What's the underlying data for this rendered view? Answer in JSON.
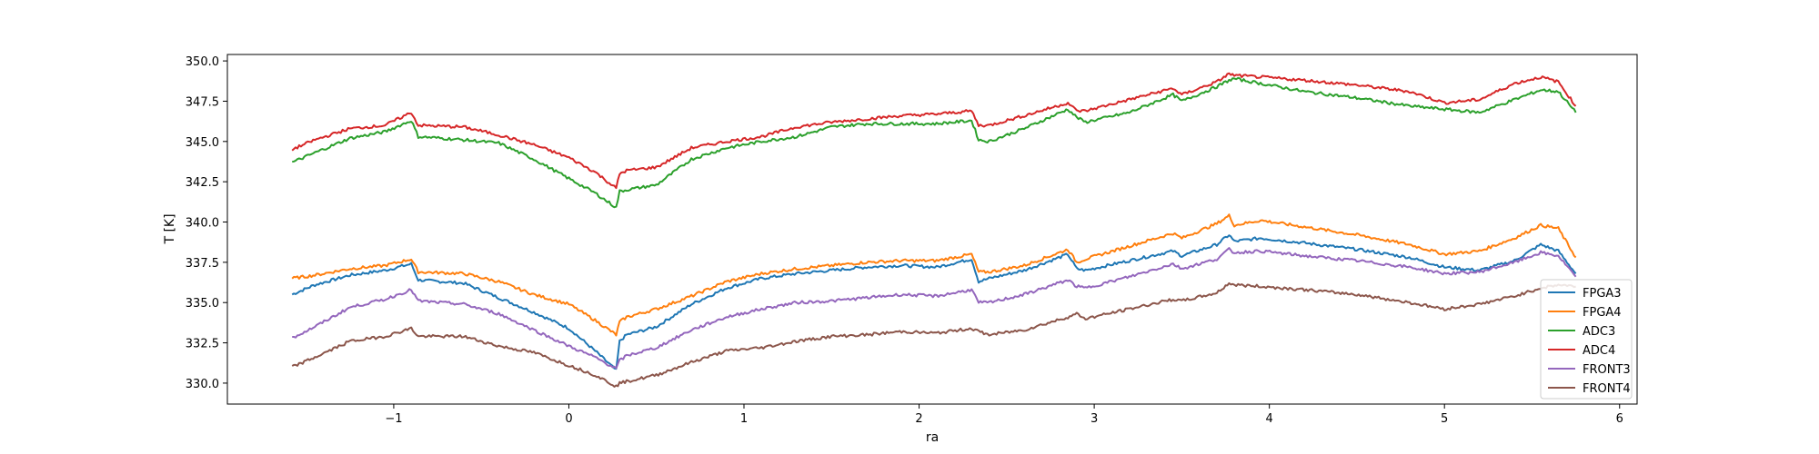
{
  "chart_data": {
    "type": "line",
    "title": "",
    "xlabel": "ra",
    "ylabel": "T [K]",
    "xlim": [
      -1.95,
      6.1
    ],
    "ylim": [
      328.7,
      350.4
    ],
    "xticks": [
      -1,
      0,
      1,
      2,
      3,
      4,
      5,
      6
    ],
    "yticks": [
      330.0,
      332.5,
      335.0,
      337.5,
      340.0,
      342.5,
      345.0,
      347.5,
      350.0
    ],
    "ytick_labels": [
      "330.0",
      "332.5",
      "335.0",
      "337.5",
      "340.0",
      "342.5",
      "345.0",
      "347.5",
      "350.0"
    ],
    "grid": false,
    "legend_position": "lower-right",
    "series": [
      {
        "name": "FPGA3",
        "color": "#1f77b4",
        "x": [
          -1.58,
          -1.45,
          -1.25,
          -1.05,
          -0.9,
          -0.86,
          -0.6,
          -0.4,
          -0.2,
          0.0,
          0.15,
          0.27,
          0.29,
          0.33,
          0.5,
          0.7,
          0.9,
          1.1,
          1.3,
          1.5,
          1.7,
          1.9,
          2.1,
          2.3,
          2.34,
          2.4,
          2.6,
          2.85,
          2.9,
          2.95,
          3.2,
          3.45,
          3.5,
          3.7,
          3.77,
          3.8,
          3.95,
          4.2,
          4.5,
          4.8,
          5.0,
          5.2,
          5.4,
          5.55,
          5.65,
          5.75
        ],
        "y": [
          335.5,
          336.1,
          336.7,
          337.0,
          337.4,
          336.4,
          336.2,
          335.3,
          334.4,
          333.4,
          332.0,
          330.8,
          332.6,
          333.0,
          333.5,
          334.9,
          335.9,
          336.5,
          336.8,
          337.0,
          337.2,
          337.3,
          337.2,
          337.7,
          336.3,
          336.5,
          337.0,
          338.0,
          337.1,
          337.0,
          337.6,
          338.2,
          337.9,
          338.6,
          339.2,
          338.8,
          339.0,
          338.7,
          338.3,
          337.8,
          337.2,
          337.0,
          337.6,
          338.6,
          338.2,
          336.8
        ]
      },
      {
        "name": "FPGA4",
        "color": "#ff7f0e",
        "x": [
          -1.58,
          -1.45,
          -1.25,
          -1.05,
          -0.9,
          -0.86,
          -0.6,
          -0.4,
          -0.2,
          0.0,
          0.15,
          0.27,
          0.29,
          0.33,
          0.5,
          0.7,
          0.9,
          1.1,
          1.3,
          1.5,
          1.7,
          1.9,
          2.1,
          2.3,
          2.34,
          2.4,
          2.6,
          2.85,
          2.9,
          2.95,
          3.2,
          3.45,
          3.5,
          3.7,
          3.77,
          3.8,
          3.95,
          4.2,
          4.5,
          4.8,
          5.0,
          5.2,
          5.4,
          5.55,
          5.65,
          5.75
        ],
        "y": [
          336.5,
          336.7,
          337.1,
          337.3,
          337.7,
          336.9,
          336.8,
          336.3,
          335.5,
          334.9,
          333.9,
          333.0,
          333.8,
          334.1,
          334.6,
          335.4,
          336.3,
          336.8,
          337.1,
          337.3,
          337.5,
          337.6,
          337.6,
          338.0,
          336.9,
          336.9,
          337.3,
          338.3,
          337.5,
          337.7,
          338.5,
          339.3,
          339.0,
          339.9,
          340.4,
          339.8,
          340.1,
          339.7,
          339.2,
          338.6,
          338.0,
          338.2,
          339.0,
          339.8,
          339.6,
          337.8
        ]
      },
      {
        "name": "ADC3",
        "color": "#2ca02c",
        "x": [
          -1.58,
          -1.45,
          -1.25,
          -1.05,
          -0.9,
          -0.86,
          -0.6,
          -0.4,
          -0.2,
          0.0,
          0.15,
          0.27,
          0.29,
          0.33,
          0.5,
          0.7,
          0.9,
          1.1,
          1.3,
          1.5,
          1.7,
          1.9,
          2.1,
          2.3,
          2.34,
          2.4,
          2.6,
          2.85,
          2.9,
          2.95,
          3.2,
          3.45,
          3.5,
          3.7,
          3.77,
          3.8,
          3.95,
          4.2,
          4.5,
          4.8,
          5.0,
          5.2,
          5.4,
          5.55,
          5.65,
          5.75
        ],
        "y": [
          343.7,
          344.3,
          345.2,
          345.6,
          346.3,
          345.3,
          345.1,
          344.9,
          343.9,
          342.7,
          341.8,
          340.9,
          341.9,
          342.0,
          342.3,
          343.9,
          344.6,
          345.0,
          345.3,
          345.9,
          346.1,
          346.1,
          346.1,
          346.3,
          345.1,
          345.0,
          345.8,
          347.0,
          346.5,
          346.2,
          346.8,
          347.9,
          347.5,
          348.4,
          348.8,
          348.9,
          348.6,
          348.1,
          347.7,
          347.2,
          347.0,
          346.8,
          347.6,
          348.2,
          348.1,
          346.8
        ]
      },
      {
        "name": "ADC4",
        "color": "#d62728",
        "x": [
          -1.58,
          -1.45,
          -1.25,
          -1.05,
          -0.9,
          -0.86,
          -0.6,
          -0.4,
          -0.2,
          0.0,
          0.15,
          0.27,
          0.29,
          0.33,
          0.5,
          0.7,
          0.9,
          1.1,
          1.3,
          1.5,
          1.7,
          1.9,
          2.1,
          2.3,
          2.34,
          2.4,
          2.6,
          2.85,
          2.9,
          2.95,
          3.2,
          3.45,
          3.5,
          3.7,
          3.77,
          3.8,
          3.95,
          4.2,
          4.5,
          4.8,
          5.0,
          5.2,
          5.4,
          5.55,
          5.65,
          5.75
        ],
        "y": [
          344.5,
          345.1,
          345.8,
          346.0,
          346.8,
          346.0,
          345.9,
          345.4,
          344.8,
          344.0,
          343.1,
          342.1,
          343.0,
          343.2,
          343.4,
          344.6,
          345.0,
          345.3,
          345.9,
          346.2,
          346.4,
          346.6,
          346.7,
          346.9,
          346.0,
          346.0,
          346.6,
          347.4,
          346.9,
          346.9,
          347.6,
          348.3,
          347.9,
          348.7,
          349.2,
          349.1,
          349.0,
          348.8,
          348.5,
          348.1,
          347.4,
          347.6,
          348.6,
          349.0,
          348.7,
          347.2
        ]
      },
      {
        "name": "FRONT3",
        "color": "#9467bd",
        "x": [
          -1.58,
          -1.45,
          -1.25,
          -1.05,
          -0.9,
          -0.86,
          -0.6,
          -0.4,
          -0.2,
          0.0,
          0.15,
          0.27,
          0.29,
          0.33,
          0.5,
          0.7,
          0.9,
          1.1,
          1.3,
          1.5,
          1.7,
          1.9,
          2.1,
          2.3,
          2.34,
          2.4,
          2.6,
          2.85,
          2.9,
          2.95,
          3.2,
          3.45,
          3.5,
          3.7,
          3.77,
          3.8,
          3.95,
          4.2,
          4.5,
          4.8,
          5.0,
          5.2,
          5.4,
          5.55,
          5.65,
          5.75
        ],
        "y": [
          332.8,
          333.5,
          334.7,
          335.2,
          335.8,
          335.1,
          334.9,
          334.3,
          333.3,
          332.3,
          331.6,
          330.9,
          331.4,
          331.7,
          332.2,
          333.3,
          334.1,
          334.6,
          335.0,
          335.1,
          335.3,
          335.5,
          335.4,
          335.8,
          335.0,
          335.0,
          335.5,
          336.4,
          336.0,
          335.9,
          336.6,
          337.4,
          337.1,
          337.7,
          338.3,
          338.1,
          338.2,
          337.9,
          337.6,
          337.2,
          336.8,
          336.9,
          337.5,
          338.1,
          337.9,
          336.6
        ]
      },
      {
        "name": "FRONT4",
        "color": "#8c564b",
        "x": [
          -1.58,
          -1.45,
          -1.25,
          -1.05,
          -0.9,
          -0.86,
          -0.6,
          -0.4,
          -0.2,
          0.0,
          0.15,
          0.27,
          0.29,
          0.33,
          0.5,
          0.7,
          0.9,
          1.1,
          1.3,
          1.5,
          1.7,
          1.9,
          2.1,
          2.3,
          2.34,
          2.4,
          2.6,
          2.85,
          2.9,
          2.95,
          3.2,
          3.45,
          3.5,
          3.7,
          3.77,
          3.8,
          3.95,
          4.2,
          4.5,
          4.8,
          5.0,
          5.2,
          5.4,
          5.55,
          5.65,
          5.75
        ],
        "y": [
          331.0,
          331.6,
          332.6,
          332.9,
          333.4,
          332.9,
          332.9,
          332.3,
          331.9,
          331.1,
          330.5,
          329.8,
          330.0,
          330.1,
          330.5,
          331.3,
          332.0,
          332.2,
          332.6,
          332.9,
          333.0,
          333.2,
          333.1,
          333.4,
          333.2,
          333.0,
          333.3,
          334.1,
          334.3,
          334.0,
          334.6,
          335.2,
          335.1,
          335.6,
          336.2,
          336.1,
          336.0,
          335.8,
          335.5,
          335.0,
          334.6,
          334.9,
          335.4,
          335.9,
          336.1,
          336.0
        ]
      }
    ]
  }
}
